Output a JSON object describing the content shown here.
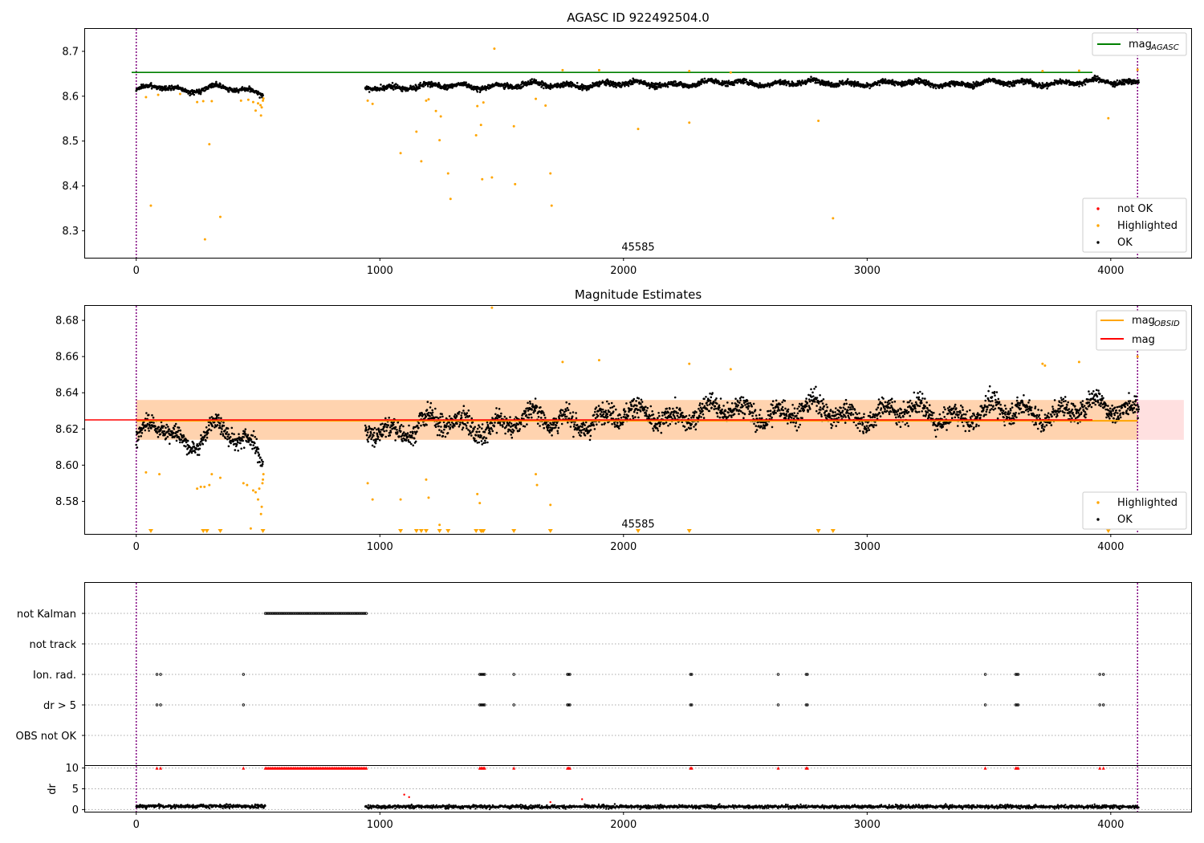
{
  "figure": {
    "chart_data": [
      {
        "type": "scatter",
        "title": "AGASC ID 922492504.0",
        "xlim": [
          -210,
          4330
        ],
        "ylim": [
          8.24,
          8.75
        ],
        "xticks": [
          0,
          1000,
          2000,
          3000,
          4000
        ],
        "yticks": [
          8.3,
          8.4,
          8.5,
          8.6,
          8.7
        ],
        "vlines": [
          0,
          4110
        ],
        "hlines": [
          {
            "name": "mag_AGASC",
            "y": 8.653,
            "color": "#008000"
          }
        ],
        "annotation": {
          "text": "45585",
          "x": 2060
        },
        "legend_upper": [
          {
            "label": "mag",
            "sub": "AGASC",
            "color": "#008000"
          }
        ],
        "legend_lower": [
          {
            "label": "not OK",
            "color": "#ff0000"
          },
          {
            "label": "Highlighted",
            "color": "#ffa500"
          },
          {
            "label": "OK",
            "color": "#000000"
          }
        ],
        "series": [
          {
            "name": "OK",
            "color": "#000000",
            "segments": [
              {
                "x": [
                  0,
                  520
                ],
                "base": [
                  8.615,
                  8.62,
                  8.61,
                  8.625,
                  8.615,
                  8.6
                ],
                "noise": 0.008
              },
              {
                "x": [
                  940,
                  4115
                ],
                "base": [
                  8.62,
                  8.625,
                  8.63,
                  8.628,
                  8.632
                ],
                "noise": 0.009
              }
            ]
          },
          {
            "name": "Highlighted",
            "color": "#ffa500",
            "points": [
              [
                40,
                8.598
              ],
              [
                60,
                8.356
              ],
              [
                90,
                8.603
              ],
              [
                180,
                8.605
              ],
              [
                250,
                8.587
              ],
              [
                275,
                8.589
              ],
              [
                282,
                8.281
              ],
              [
                300,
                8.493
              ],
              [
                310,
                8.589
              ],
              [
                345,
                8.331
              ],
              [
                430,
                8.59
              ],
              [
                460,
                8.592
              ],
              [
                480,
                8.587
              ],
              [
                490,
                8.568
              ],
              [
                500,
                8.584
              ],
              [
                510,
                8.58
              ],
              [
                512,
                8.557
              ],
              [
                515,
                8.575
              ],
              [
                520,
                8.59
              ],
              [
                522,
                8.595
              ],
              [
                950,
                8.59
              ],
              [
                970,
                8.583
              ],
              [
                1085,
                8.473
              ],
              [
                1150,
                8.521
              ],
              [
                1170,
                8.455
              ],
              [
                1190,
                8.59
              ],
              [
                1200,
                8.593
              ],
              [
                1230,
                8.567
              ],
              [
                1245,
                8.502
              ],
              [
                1250,
                8.555
              ],
              [
                1280,
                8.428
              ],
              [
                1290,
                8.371
              ],
              [
                1395,
                8.513
              ],
              [
                1400,
                8.578
              ],
              [
                1415,
                8.536
              ],
              [
                1420,
                8.415
              ],
              [
                1425,
                8.586
              ],
              [
                1460,
                8.419
              ],
              [
                1470,
                8.706
              ],
              [
                1550,
                8.533
              ],
              [
                1555,
                8.404
              ],
              [
                1640,
                8.594
              ],
              [
                1680,
                8.579
              ],
              [
                1700,
                8.428
              ],
              [
                1705,
                8.356
              ],
              [
                1750,
                8.658
              ],
              [
                1900,
                8.658
              ],
              [
                2060,
                8.527
              ],
              [
                2270,
                8.541
              ],
              [
                2270,
                8.656
              ],
              [
                2440,
                8.653
              ],
              [
                2800,
                8.545
              ],
              [
                2860,
                8.328
              ],
              [
                3720,
                8.656
              ],
              [
                3870,
                8.657
              ],
              [
                3990,
                8.551
              ],
              [
                4110,
                8.659
              ]
            ]
          }
        ]
      },
      {
        "type": "scatter",
        "title": "Magnitude Estimates",
        "xlim": [
          -210,
          4330
        ],
        "ylim": [
          8.562,
          8.688
        ],
        "xticks": [
          0,
          1000,
          2000,
          3000,
          4000
        ],
        "yticks": [
          8.58,
          8.6,
          8.62,
          8.64,
          8.66,
          8.68
        ],
        "vlines": [
          0,
          4110
        ],
        "band_red": {
          "y": [
            8.614,
            8.636
          ],
          "x": [
            0,
            4300
          ]
        },
        "band_orange": {
          "y": [
            8.614,
            8.636
          ],
          "x": [
            0,
            4110
          ]
        },
        "hlines": [
          {
            "name": "mag",
            "y": 8.625,
            "color": "#ff0000"
          },
          {
            "name": "mag_OBSID",
            "y": 8.6245,
            "color": "#ffa500"
          }
        ],
        "annotation": {
          "text": "45585",
          "x": 2060
        },
        "legend_upper": [
          {
            "label": "mag",
            "sub": "OBSID",
            "color": "#ffa500"
          },
          {
            "label": "mag",
            "sub": "",
            "color": "#ff0000"
          }
        ],
        "legend_lower": [
          {
            "label": "Highlighted",
            "color": "#ffa500"
          },
          {
            "label": "OK",
            "color": "#000000"
          }
        ],
        "series": [
          {
            "name": "OK",
            "color": "#000000",
            "segments": [
              {
                "x": [
                  0,
                  520
                ],
                "base": [
                  8.615,
                  8.62,
                  8.61,
                  8.625,
                  8.615,
                  8.6
                ],
                "noise": 0.008
              },
              {
                "x": [
                  940,
                  4115
                ],
                "base": [
                  8.62,
                  8.625,
                  8.63,
                  8.628,
                  8.632
                ],
                "noise": 0.009
              }
            ]
          },
          {
            "name": "Highlighted",
            "color": "#ffa500",
            "points": [
              [
                40,
                8.596
              ],
              [
                95,
                8.595
              ],
              [
                250,
                8.587
              ],
              [
                265,
                8.588
              ],
              [
                280,
                8.588
              ],
              [
                300,
                8.589
              ],
              [
                310,
                8.595
              ],
              [
                345,
                8.593
              ],
              [
                440,
                8.59
              ],
              [
                455,
                8.589
              ],
              [
                470,
                8.565
              ],
              [
                480,
                8.586
              ],
              [
                490,
                8.585
              ],
              [
                500,
                8.581
              ],
              [
                505,
                8.587
              ],
              [
                512,
                8.573
              ],
              [
                515,
                8.577
              ],
              [
                518,
                8.59
              ],
              [
                520,
                8.592
              ],
              [
                522,
                8.595
              ],
              [
                950,
                8.59
              ],
              [
                970,
                8.581
              ],
              [
                1085,
                8.581
              ],
              [
                1190,
                8.592
              ],
              [
                1200,
                8.582
              ],
              [
                1245,
                8.567
              ],
              [
                1400,
                8.584
              ],
              [
                1410,
                8.579
              ],
              [
                1460,
                8.687
              ],
              [
                1640,
                8.595
              ],
              [
                1645,
                8.589
              ],
              [
                1700,
                8.578
              ],
              [
                1750,
                8.657
              ],
              [
                1900,
                8.658
              ],
              [
                2270,
                8.656
              ],
              [
                2440,
                8.653
              ],
              [
                3720,
                8.656
              ],
              [
                3730,
                8.655
              ],
              [
                3870,
                8.657
              ],
              [
                4110,
                8.66
              ]
            ]
          },
          {
            "name": "below-range",
            "color": "#ffa500",
            "marker": "triangle-down",
            "x": [
              60,
              275,
              290,
              345,
              520,
              1085,
              1150,
              1170,
              1190,
              1245,
              1280,
              1395,
              1415,
              1420,
              1425,
              1550,
              1700,
              2060,
              2270,
              2800,
              2860,
              3990
            ]
          }
        ]
      },
      {
        "type": "flags",
        "xlim": [
          -210,
          4330
        ],
        "categories": [
          "not Kalman",
          "not track",
          "Ion. rad.",
          "dr > 5",
          "OBS not OK"
        ],
        "vlines": [
          0,
          4110
        ],
        "not_kalman_range": [
          530,
          945
        ],
        "ion_rad_x": [
          85,
          100,
          440,
          1410,
          1415,
          1420,
          1425,
          1430,
          1550,
          1770,
          1775,
          1780,
          2275,
          2280,
          2635,
          2750,
          2755,
          3485,
          3610,
          3615,
          3620,
          3955,
          3970
        ],
        "dr5_x": [
          85,
          100,
          440,
          1410,
          1415,
          1420,
          1425,
          1430,
          1550,
          1770,
          1775,
          1780,
          2275,
          2280,
          2635,
          2750,
          2755,
          3485,
          3610,
          3615,
          3620,
          3955,
          3970
        ]
      },
      {
        "type": "scatter",
        "xlim": [
          -210,
          4330
        ],
        "ylabel": "dr",
        "ylim": [
          -0.5,
          10.5
        ],
        "yticks": [
          0,
          5,
          10
        ],
        "xticks": [
          0,
          1000,
          2000,
          3000,
          4000
        ],
        "vlines": [
          0,
          4110
        ],
        "series": [
          {
            "name": "dr",
            "color": "#000000",
            "segments": [
              {
                "x": [
                  0,
                  530
                ],
                "level": 0.8,
                "noise": 0.35
              },
              {
                "x": [
                  940,
                  4115
                ],
                "level": 0.7,
                "noise": 0.35
              }
            ]
          },
          {
            "name": "dr capped",
            "color": "#ff0000",
            "marker": "triangle-up",
            "y": 10,
            "x": [
              85,
              100,
              440,
              1410,
              1415,
              1420,
              1425,
              1430,
              1550,
              1770,
              1775,
              1780,
              2275,
              2280,
              2635,
              2750,
              2755,
              3485,
              3610,
              3615,
              3620,
              3955,
              3970
            ],
            "range": [
              530,
              945
            ]
          },
          {
            "name": "dr outliers",
            "color": "#ff0000",
            "points": [
              [
                1100,
                3.6
              ],
              [
                1120,
                3.0
              ],
              [
                1700,
                1.8
              ],
              [
                1830,
                2.5
              ]
            ]
          }
        ]
      }
    ]
  }
}
